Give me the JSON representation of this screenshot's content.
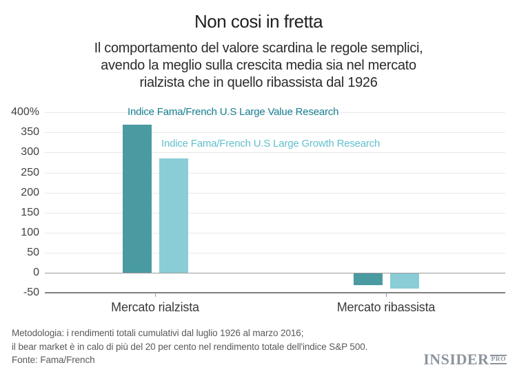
{
  "header": {
    "title": "Non cosi in fretta",
    "subtitle": "Il comportamento del valore scardina le regole semplici,\navendo la meglio sulla crescita media sia nel mercato\nrialzista che in quello ribassista dal 1926"
  },
  "chart_data": {
    "type": "bar",
    "title": "Non cosi in fretta",
    "categories": [
      "Mercato rialzista",
      "Mercato ribassista"
    ],
    "series": [
      {
        "name": "Indice Fama/French U.S Large Value Research",
        "values": [
          370,
          -30
        ],
        "bar_color": "#4a9aa1",
        "label_color": "#177f91"
      },
      {
        "name": "Indice Fama/French U.S Large Growth Research",
        "values": [
          285,
          -37
        ],
        "bar_color": "#8acdd6",
        "label_color": "#63c0ce"
      }
    ],
    "xlabel": "",
    "ylabel": "",
    "ylim": [
      -50,
      400
    ],
    "yticks": {
      "values": [
        400,
        350,
        300,
        250,
        200,
        150,
        100,
        50,
        0,
        -50
      ],
      "labels": [
        "400%",
        "350",
        "300",
        "250",
        "200",
        "150",
        "100",
        "50",
        "0",
        "-50"
      ]
    },
    "grid": "horizontal",
    "legend_position": "inside-top-left"
  },
  "footer": {
    "methodology": "Metodologia: i rendimenti totali cumulativi dal luglio 1926 al marzo 2016;\nil bear market è in calo di più del 20 per cento nel rendimento totale dell'indice S&P 500.",
    "source": "Fonte: Fama/French"
  },
  "logo": {
    "name": "INSIDER",
    "suffix": "PRO"
  },
  "colors": {
    "grid": "#e8e8e8",
    "zero_line": "#9b9b9b",
    "baseline": "#7f7f7f",
    "tick": "#9b9b9b",
    "axis_text": "#414042",
    "footnote_text": "#58595b",
    "logo": "#8c949c"
  }
}
